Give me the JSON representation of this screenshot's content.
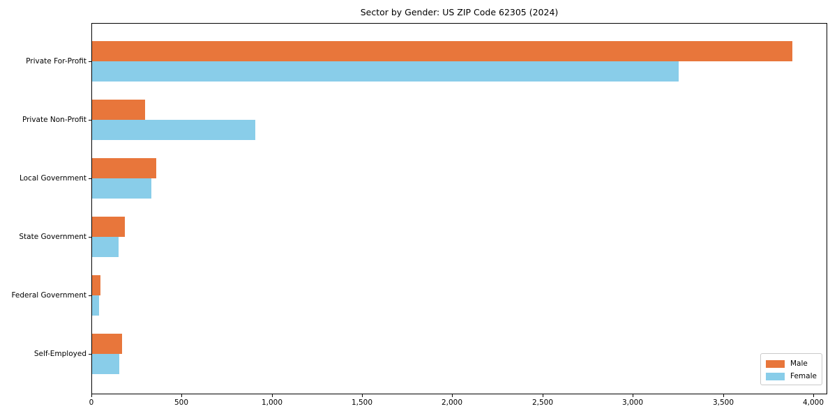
{
  "title": "Sector by Gender: US ZIP Code 62305 (2024)",
  "chart_data": {
    "type": "bar",
    "orientation": "horizontal",
    "title": "Sector by Gender: US ZIP Code 62305 (2024)",
    "categories": [
      "Private For-Profit",
      "Private Non-Profit",
      "Local Government",
      "State Government",
      "Federal Government",
      "Self-Employed"
    ],
    "series": [
      {
        "name": "Male",
        "color": "#e8763b",
        "values": [
          3880,
          295,
          355,
          180,
          45,
          165
        ]
      },
      {
        "name": "Female",
        "color": "#89cde9",
        "values": [
          3250,
          905,
          330,
          145,
          40,
          150
        ]
      }
    ],
    "xlabel": "",
    "ylabel": "",
    "xlim": [
      0,
      4070
    ],
    "x_ticks": [
      0,
      500,
      1000,
      1500,
      2000,
      2500,
      3000,
      3500,
      4000
    ],
    "x_tick_labels": [
      "0",
      "500",
      "1,000",
      "1,500",
      "2,000",
      "2,500",
      "3,000",
      "3,500",
      "4,000"
    ],
    "grid": false,
    "legend_position": "lower right"
  },
  "legend": {
    "items": [
      {
        "label": "Male",
        "color": "#e8763b"
      },
      {
        "label": "Female",
        "color": "#89cde9"
      }
    ]
  }
}
